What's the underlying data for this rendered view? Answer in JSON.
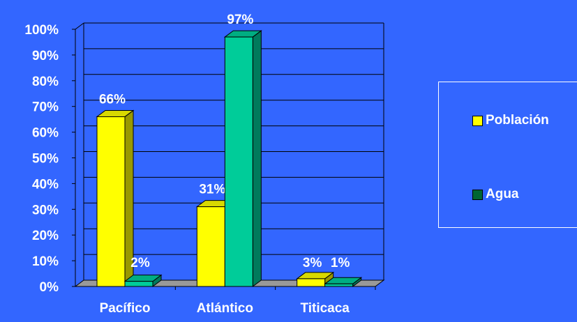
{
  "chart_data": {
    "type": "bar",
    "categories": [
      "Pacífico",
      "Atlántico",
      "Titicaca"
    ],
    "series": [
      {
        "name": "Población",
        "values": [
          66,
          31,
          3
        ],
        "labels": [
          "66%",
          "31%",
          "3%"
        ],
        "color": "#FFFF00"
      },
      {
        "name": "Agua",
        "values": [
          2,
          97,
          1
        ],
        "labels": [
          "2%",
          "97%",
          "1%"
        ],
        "color": "#00CC99"
      }
    ],
    "yticks": [
      "0%",
      "10%",
      "20%",
      "30%",
      "40%",
      "50%",
      "60%",
      "70%",
      "80%",
      "90%",
      "100%"
    ],
    "ylim": [
      0,
      100
    ],
    "grid": true,
    "three_d": true,
    "legend_position": "right",
    "colors": {
      "background": "#3366FF",
      "floor": "#999999",
      "text": "#FFFFFF"
    }
  },
  "legend": [
    {
      "label": "Población",
      "color": "#FFFF00"
    },
    {
      "label": "Agua",
      "color": "#006633"
    }
  ]
}
